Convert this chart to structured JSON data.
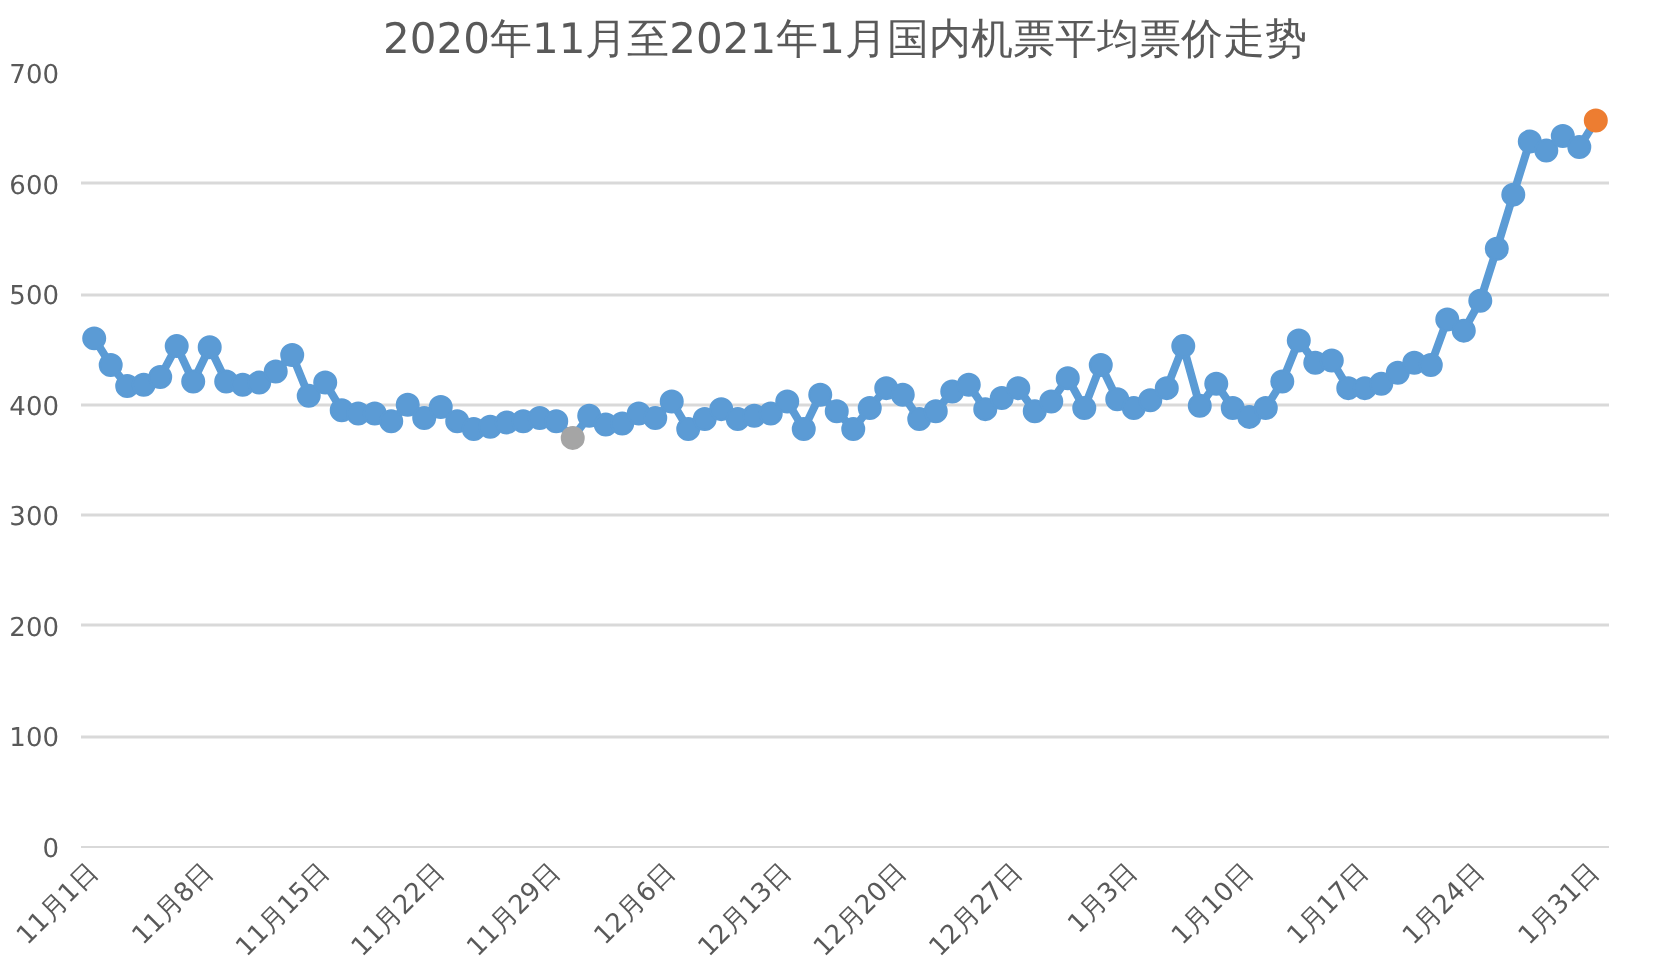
{
  "chart_data": {
    "type": "line",
    "title": "2020年11月至2021年1月国内机票平均票价走势",
    "categories": [
      "11月1日",
      null,
      null,
      null,
      null,
      null,
      null,
      "11月8日",
      null,
      null,
      null,
      null,
      null,
      null,
      "11月15日",
      null,
      null,
      null,
      null,
      null,
      null,
      "11月22日",
      null,
      null,
      null,
      null,
      null,
      null,
      "11月29日",
      null,
      null,
      null,
      null,
      null,
      null,
      "12月6日",
      null,
      null,
      null,
      null,
      null,
      null,
      "12月13日",
      null,
      null,
      null,
      null,
      null,
      null,
      "12月20日",
      null,
      null,
      null,
      null,
      null,
      null,
      "12月27日",
      null,
      null,
      null,
      null,
      null,
      null,
      "1月3日",
      null,
      null,
      null,
      null,
      null,
      null,
      "1月10日",
      null,
      null,
      null,
      null,
      null,
      null,
      "1月17日",
      null,
      null,
      null,
      null,
      null,
      null,
      "1月24日",
      null,
      null,
      null,
      null,
      null,
      null,
      "1月31日"
    ],
    "series": [
      {
        "color": "#5b9bd5",
        "colors": [
          "#5b9bd5",
          "#5b9bd5",
          "#5b9bd5",
          "#5b9bd5",
          "#5b9bd5",
          "#5b9bd5",
          "#5b9bd5",
          "#5b9bd5",
          "#5b9bd5",
          "#5b9bd5",
          "#5b9bd5",
          "#5b9bd5",
          "#5b9bd5",
          "#5b9bd5",
          "#5b9bd5",
          "#5b9bd5",
          "#5b9bd5",
          "#5b9bd5",
          "#5b9bd5",
          "#5b9bd5",
          "#5b9bd5",
          "#5b9bd5",
          "#5b9bd5",
          "#5b9bd5",
          "#5b9bd5",
          "#5b9bd5",
          "#5b9bd5",
          "#5b9bd5",
          "#5b9bd5",
          "#a5a5a5",
          "#5b9bd5",
          "#5b9bd5",
          "#5b9bd5",
          "#5b9bd5",
          "#5b9bd5",
          "#5b9bd5",
          "#5b9bd5",
          "#5b9bd5",
          "#5b9bd5",
          "#5b9bd5",
          "#5b9bd5",
          "#5b9bd5",
          "#5b9bd5",
          "#5b9bd5",
          "#5b9bd5",
          "#5b9bd5",
          "#5b9bd5",
          "#5b9bd5",
          "#5b9bd5",
          "#5b9bd5",
          "#5b9bd5",
          "#5b9bd5",
          "#5b9bd5",
          "#5b9bd5",
          "#5b9bd5",
          "#5b9bd5",
          "#5b9bd5",
          "#5b9bd5",
          "#5b9bd5",
          "#5b9bd5",
          "#5b9bd5",
          "#5b9bd5",
          "#5b9bd5",
          "#5b9bd5",
          "#5b9bd5",
          "#5b9bd5",
          "#5b9bd5",
          "#5b9bd5",
          "#5b9bd5",
          "#5b9bd5",
          "#5b9bd5",
          "#5b9bd5",
          "#5b9bd5",
          "#5b9bd5",
          "#5b9bd5",
          "#5b9bd5",
          "#5b9bd5",
          "#5b9bd5",
          "#5b9bd5",
          "#5b9bd5",
          "#5b9bd5",
          "#5b9bd5",
          "#5b9bd5",
          "#5b9bd5",
          "#5b9bd5",
          "#5b9bd5",
          "#5b9bd5",
          "#5b9bd5",
          "#5b9bd5",
          "#5b9bd5",
          "#5b9bd5",
          "#ed7d31"
        ],
        "values": [
          460,
          436,
          417,
          418,
          425,
          453,
          421,
          452,
          421,
          418,
          420,
          430,
          445,
          408,
          420,
          395,
          392,
          392,
          385,
          400,
          388,
          398,
          385,
          378,
          380,
          384,
          385,
          388,
          385,
          370,
          390,
          382,
          383,
          392,
          388,
          403,
          378,
          387,
          396,
          387,
          390,
          392,
          403,
          378,
          409,
          394,
          378,
          397,
          415,
          409,
          387,
          394,
          412,
          418,
          396,
          406,
          415,
          394,
          403,
          424,
          397,
          436,
          405,
          397,
          404,
          415,
          453,
          399,
          419,
          397,
          389,
          397,
          421,
          458,
          438,
          440,
          415,
          415,
          419,
          429,
          438,
          436,
          477,
          467,
          494,
          541,
          590,
          638,
          630,
          643,
          633,
          657
        ]
      }
    ],
    "ylim": [
      0,
      700
    ],
    "yticks": [
      0,
      100,
      200,
      300,
      400,
      500,
      600,
      700
    ],
    "grid": "y",
    "marker": "circle",
    "line_style": "solid"
  }
}
